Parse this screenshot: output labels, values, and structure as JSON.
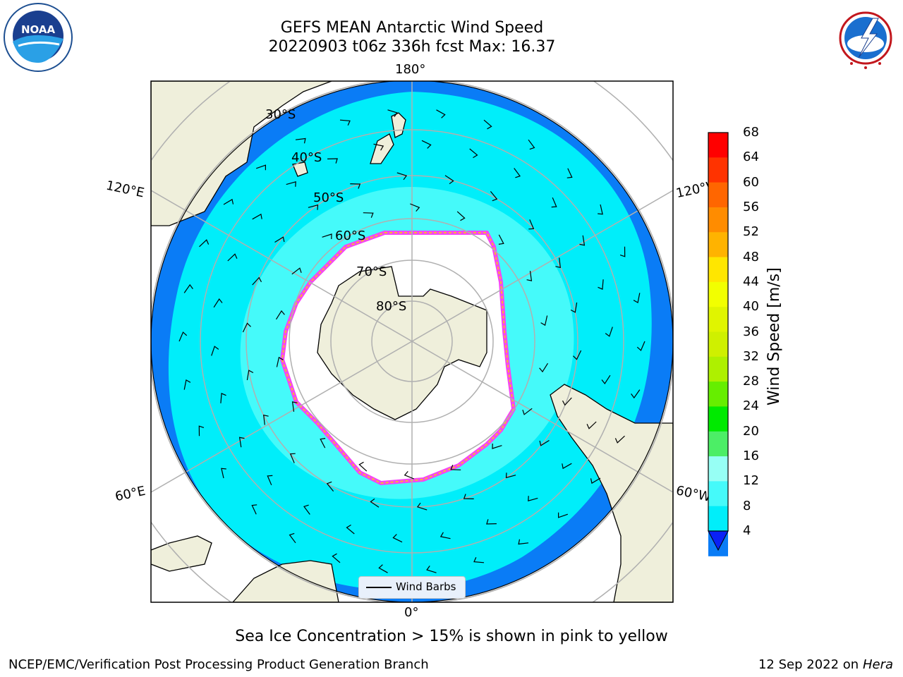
{
  "header": {
    "title_line1": "GEFS MEAN Antarctic Wind Speed",
    "title_line2": "20220903 t06z 336h fcst   Max: 16.37"
  },
  "logos": {
    "noaa_text": "NOAA",
    "nws_text": "NATIONAL WEATHER SERVICE"
  },
  "map": {
    "projection": "south-polar-stereographic",
    "longitude_labels": {
      "top": "180°",
      "bottom": "0°",
      "upper_left": "120°E",
      "lower_left": "60°E",
      "upper_right": "120°W",
      "lower_right": "60°W"
    },
    "latitude_labels": [
      "30°S",
      "40°S",
      "50°S",
      "60°S",
      "70°S",
      "80°S"
    ],
    "legend_label": "Wind Barbs",
    "colors": {
      "land": "#efefdb",
      "ocean_4_8": "#0a7cf6",
      "ocean_8_12": "#00eefa",
      "ocean_12_16": "#45fafa",
      "sea_ice_edge": "#f545f5",
      "sea_ice_fill": "#f7b733"
    }
  },
  "colorbar": {
    "title": "Wind Speed [m/s]",
    "ticks": [
      "68",
      "64",
      "60",
      "56",
      "52",
      "48",
      "44",
      "40",
      "36",
      "32",
      "28",
      "24",
      "20",
      "16",
      "12",
      "8",
      "4"
    ],
    "colors": [
      "#ff0000",
      "#ff3300",
      "#ff6600",
      "#ff8c00",
      "#ffb300",
      "#ffe600",
      "#f2ff00",
      "#e0f500",
      "#cff000",
      "#aef000",
      "#66ee00",
      "#00ea00",
      "#4cee66",
      "#97fff5",
      "#45fafa",
      "#00eefa",
      "#0a7cf6"
    ],
    "extend_color": "#0a21f6"
  },
  "footer": {
    "subtitle": "Sea Ice Concentration > 15% is shown in pink to yellow",
    "left": "NCEP/EMC/Verification Post Processing Product Generation Branch",
    "right_date": "12 Sep 2022 on",
    "right_machine": "Hera"
  }
}
